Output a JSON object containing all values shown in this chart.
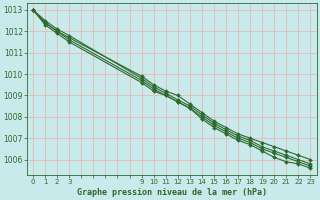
{
  "title": "Graphe pression niveau de la mer (hPa)",
  "bg_color": "#c8eaea",
  "grid_color": "#e8b8b8",
  "line_color": "#2d6a2d",
  "marker_color": "#2d6a2d",
  "ylim": [
    1005.3,
    1013.3
  ],
  "xlim": [
    -0.5,
    23.5
  ],
  "yticks": [
    1006,
    1007,
    1008,
    1009,
    1010,
    1011,
    1012,
    1013
  ],
  "xticks": [
    0,
    1,
    2,
    3,
    9,
    10,
    11,
    12,
    13,
    14,
    15,
    16,
    17,
    18,
    19,
    20,
    21,
    22,
    23
  ],
  "all_xticks": [
    0,
    1,
    2,
    3,
    4,
    5,
    6,
    7,
    8,
    9,
    10,
    11,
    12,
    13,
    14,
    15,
    16,
    17,
    18,
    19,
    20,
    21,
    22,
    23
  ],
  "lines": [
    {
      "x": [
        0,
        1,
        2,
        3,
        9,
        10,
        11,
        12,
        13,
        14,
        15,
        16,
        17,
        18,
        19,
        20,
        21,
        22,
        23
      ],
      "y": [
        1013.0,
        1012.4,
        1012.0,
        1011.7,
        1009.9,
        1009.5,
        1009.2,
        1009.0,
        1008.6,
        1008.2,
        1007.8,
        1007.5,
        1007.2,
        1007.0,
        1006.8,
        1006.6,
        1006.4,
        1006.2,
        1006.0
      ]
    },
    {
      "x": [
        0,
        1,
        2,
        3,
        9,
        10,
        11,
        12,
        13,
        14,
        15,
        16,
        17,
        18,
        19,
        20,
        21,
        22,
        23
      ],
      "y": [
        1013.0,
        1012.3,
        1011.9,
        1011.5,
        1009.6,
        1009.2,
        1009.0,
        1008.7,
        1008.4,
        1008.0,
        1007.6,
        1007.3,
        1007.0,
        1006.8,
        1006.5,
        1006.3,
        1006.1,
        1005.9,
        1005.7
      ]
    },
    {
      "x": [
        0,
        1,
        2,
        3,
        9,
        10,
        11,
        12,
        13,
        14,
        15,
        16,
        17,
        18,
        19,
        20,
        21,
        22,
        23
      ],
      "y": [
        1013.0,
        1012.5,
        1012.1,
        1011.8,
        1009.8,
        1009.4,
        1009.1,
        1008.8,
        1008.5,
        1008.1,
        1007.7,
        1007.4,
        1007.1,
        1006.9,
        1006.6,
        1006.4,
        1006.2,
        1006.0,
        1005.8
      ]
    },
    {
      "x": [
        0,
        1,
        2,
        3,
        9,
        10,
        11,
        12,
        13,
        14,
        15,
        16,
        17,
        18,
        19,
        20,
        21,
        22,
        23
      ],
      "y": [
        1013.0,
        1012.4,
        1012.0,
        1011.6,
        1009.7,
        1009.3,
        1009.0,
        1008.7,
        1008.4,
        1007.9,
        1007.5,
        1007.2,
        1006.9,
        1006.7,
        1006.4,
        1006.1,
        1005.9,
        1005.8,
        1005.6
      ]
    }
  ],
  "title_fontsize": 6,
  "tick_fontsize": 5,
  "ylabel_fontsize": 5.5
}
